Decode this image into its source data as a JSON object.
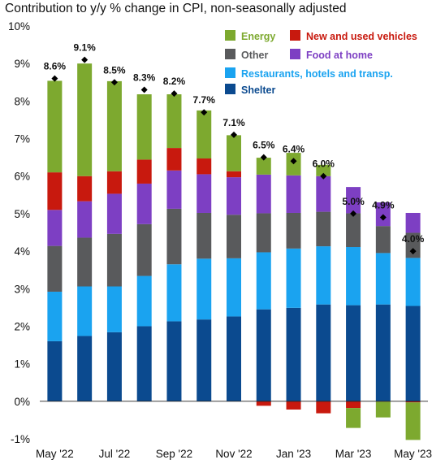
{
  "title": "Contribution to y/y % change in CPI, non-seasonally adjusted",
  "chart_data": {
    "type": "bar",
    "stacked": true,
    "categories": [
      "May '22",
      "Jun '22",
      "Jul '22",
      "Aug '22",
      "Sep '22",
      "Oct '22",
      "Nov '22",
      "Dec '22",
      "Jan '23",
      "Feb '23",
      "Mar '23",
      "Apr '23",
      "May '23"
    ],
    "x_tick_labels": [
      "May '22",
      "Jul '22",
      "Sep '22",
      "Nov '22",
      "Jan '23",
      "Mar '23",
      "May '23"
    ],
    "ylim": [
      -1,
      10
    ],
    "yticks": [
      -1,
      0,
      1,
      2,
      3,
      4,
      5,
      6,
      7,
      8,
      9,
      10
    ],
    "ytick_format": "percent",
    "grid": false,
    "legend_position": "top-right",
    "series": [
      {
        "name": "Shelter",
        "color": "#0b4a8f",
        "values": [
          1.6,
          1.74,
          1.84,
          2.0,
          2.13,
          2.18,
          2.26,
          2.45,
          2.49,
          2.58,
          2.56,
          2.58,
          2.54
        ]
      },
      {
        "name": "Restaurants, hotels and transp.",
        "color": "#1aa3f0",
        "values": [
          1.32,
          1.32,
          1.22,
          1.34,
          1.52,
          1.62,
          1.55,
          1.52,
          1.58,
          1.55,
          1.55,
          1.37,
          1.28
        ]
      },
      {
        "name": "Other",
        "color": "#595a5c",
        "values": [
          1.22,
          1.3,
          1.4,
          1.38,
          1.48,
          1.22,
          1.16,
          1.04,
          0.95,
          0.92,
          0.9,
          0.72,
          0.67
        ]
      },
      {
        "name": "Food at home",
        "color": "#7d3fc3",
        "values": [
          0.96,
          0.97,
          1.07,
          1.08,
          1.02,
          1.03,
          1.0,
          1.03,
          1.0,
          0.95,
          0.7,
          0.63,
          0.53
        ]
      },
      {
        "name": "New and used vehicles",
        "color": "#c8190e",
        "values": [
          1.0,
          0.67,
          0.6,
          0.64,
          0.6,
          0.42,
          0.16,
          -0.12,
          -0.22,
          -0.32,
          -0.18,
          -0.01,
          -0.03
        ]
      },
      {
        "name": "Energy",
        "color": "#7da92f",
        "values": [
          2.44,
          3.0,
          2.4,
          1.74,
          1.43,
          1.28,
          0.96,
          0.45,
          0.6,
          0.3,
          -0.53,
          -0.42,
          -1.0
        ]
      }
    ],
    "totals": [
      8.6,
      9.1,
      8.5,
      8.3,
      8.2,
      7.7,
      7.1,
      6.5,
      6.4,
      6.0,
      5.0,
      4.9,
      4.0
    ],
    "total_labels": [
      "8.6%",
      "9.1%",
      "8.5%",
      "8.3%",
      "8.2%",
      "7.7%",
      "7.1%",
      "6.5%",
      "6.4%",
      "6.0%",
      "5.0%",
      "4.9%",
      "4.0%"
    ],
    "legend_order": [
      "Energy",
      "New and used vehicles",
      "Other",
      "Food at home",
      "Restaurants, hotels and transp.",
      "Shelter"
    ],
    "legend_text_colors": {
      "Energy": "#7da92f",
      "New and used vehicles": "#c8190e",
      "Other": "#595a5c",
      "Food at home": "#7d3fc3",
      "Restaurants, hotels and transp.": "#1aa3f0",
      "Shelter": "#0b4a8f"
    },
    "total_marker": "diamond",
    "total_marker_color": "#000000"
  }
}
